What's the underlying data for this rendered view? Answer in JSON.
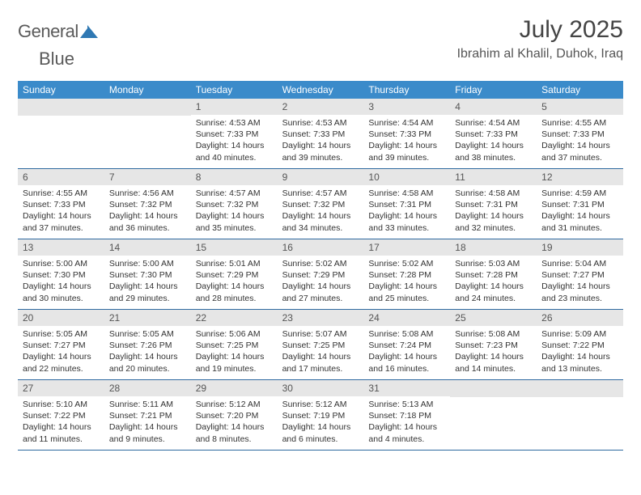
{
  "logo": {
    "word1": "General",
    "word2": "Blue"
  },
  "title": "July 2025",
  "location": "Ibrahim al Khalil, Duhok, Iraq",
  "colors": {
    "header_bg": "#3b8bca",
    "header_text": "#ffffff",
    "daynum_bg": "#e6e6e6",
    "cell_text": "#333333",
    "week_divider": "#2f6aa0",
    "logo_gray": "#5a5a5a",
    "logo_blue": "#2f78b3"
  },
  "weekdays": [
    "Sunday",
    "Monday",
    "Tuesday",
    "Wednesday",
    "Thursday",
    "Friday",
    "Saturday"
  ],
  "weeks": [
    [
      null,
      null,
      {
        "n": "1",
        "sr": "4:53 AM",
        "ss": "7:33 PM",
        "dl": "14 hours and 40 minutes."
      },
      {
        "n": "2",
        "sr": "4:53 AM",
        "ss": "7:33 PM",
        "dl": "14 hours and 39 minutes."
      },
      {
        "n": "3",
        "sr": "4:54 AM",
        "ss": "7:33 PM",
        "dl": "14 hours and 39 minutes."
      },
      {
        "n": "4",
        "sr": "4:54 AM",
        "ss": "7:33 PM",
        "dl": "14 hours and 38 minutes."
      },
      {
        "n": "5",
        "sr": "4:55 AM",
        "ss": "7:33 PM",
        "dl": "14 hours and 37 minutes."
      }
    ],
    [
      {
        "n": "6",
        "sr": "4:55 AM",
        "ss": "7:33 PM",
        "dl": "14 hours and 37 minutes."
      },
      {
        "n": "7",
        "sr": "4:56 AM",
        "ss": "7:32 PM",
        "dl": "14 hours and 36 minutes."
      },
      {
        "n": "8",
        "sr": "4:57 AM",
        "ss": "7:32 PM",
        "dl": "14 hours and 35 minutes."
      },
      {
        "n": "9",
        "sr": "4:57 AM",
        "ss": "7:32 PM",
        "dl": "14 hours and 34 minutes."
      },
      {
        "n": "10",
        "sr": "4:58 AM",
        "ss": "7:31 PM",
        "dl": "14 hours and 33 minutes."
      },
      {
        "n": "11",
        "sr": "4:58 AM",
        "ss": "7:31 PM",
        "dl": "14 hours and 32 minutes."
      },
      {
        "n": "12",
        "sr": "4:59 AM",
        "ss": "7:31 PM",
        "dl": "14 hours and 31 minutes."
      }
    ],
    [
      {
        "n": "13",
        "sr": "5:00 AM",
        "ss": "7:30 PM",
        "dl": "14 hours and 30 minutes."
      },
      {
        "n": "14",
        "sr": "5:00 AM",
        "ss": "7:30 PM",
        "dl": "14 hours and 29 minutes."
      },
      {
        "n": "15",
        "sr": "5:01 AM",
        "ss": "7:29 PM",
        "dl": "14 hours and 28 minutes."
      },
      {
        "n": "16",
        "sr": "5:02 AM",
        "ss": "7:29 PM",
        "dl": "14 hours and 27 minutes."
      },
      {
        "n": "17",
        "sr": "5:02 AM",
        "ss": "7:28 PM",
        "dl": "14 hours and 25 minutes."
      },
      {
        "n": "18",
        "sr": "5:03 AM",
        "ss": "7:28 PM",
        "dl": "14 hours and 24 minutes."
      },
      {
        "n": "19",
        "sr": "5:04 AM",
        "ss": "7:27 PM",
        "dl": "14 hours and 23 minutes."
      }
    ],
    [
      {
        "n": "20",
        "sr": "5:05 AM",
        "ss": "7:27 PM",
        "dl": "14 hours and 22 minutes."
      },
      {
        "n": "21",
        "sr": "5:05 AM",
        "ss": "7:26 PM",
        "dl": "14 hours and 20 minutes."
      },
      {
        "n": "22",
        "sr": "5:06 AM",
        "ss": "7:25 PM",
        "dl": "14 hours and 19 minutes."
      },
      {
        "n": "23",
        "sr": "5:07 AM",
        "ss": "7:25 PM",
        "dl": "14 hours and 17 minutes."
      },
      {
        "n": "24",
        "sr": "5:08 AM",
        "ss": "7:24 PM",
        "dl": "14 hours and 16 minutes."
      },
      {
        "n": "25",
        "sr": "5:08 AM",
        "ss": "7:23 PM",
        "dl": "14 hours and 14 minutes."
      },
      {
        "n": "26",
        "sr": "5:09 AM",
        "ss": "7:22 PM",
        "dl": "14 hours and 13 minutes."
      }
    ],
    [
      {
        "n": "27",
        "sr": "5:10 AM",
        "ss": "7:22 PM",
        "dl": "14 hours and 11 minutes."
      },
      {
        "n": "28",
        "sr": "5:11 AM",
        "ss": "7:21 PM",
        "dl": "14 hours and 9 minutes."
      },
      {
        "n": "29",
        "sr": "5:12 AM",
        "ss": "7:20 PM",
        "dl": "14 hours and 8 minutes."
      },
      {
        "n": "30",
        "sr": "5:12 AM",
        "ss": "7:19 PM",
        "dl": "14 hours and 6 minutes."
      },
      {
        "n": "31",
        "sr": "5:13 AM",
        "ss": "7:18 PM",
        "dl": "14 hours and 4 minutes."
      },
      null,
      null
    ]
  ],
  "labels": {
    "sunrise": "Sunrise: ",
    "sunset": "Sunset: ",
    "daylight": "Daylight: "
  }
}
